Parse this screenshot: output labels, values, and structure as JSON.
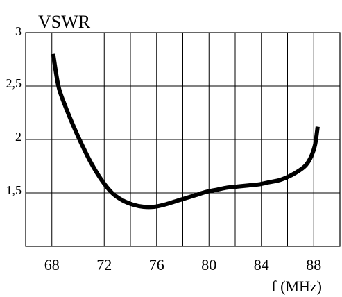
{
  "chart_data": {
    "type": "line",
    "title": "VSWR",
    "xlabel": "f (MHz)",
    "ylabel": "",
    "xlim": [
      66,
      90
    ],
    "ylim": [
      1,
      3
    ],
    "grid": true,
    "x_ticks": [
      68,
      72,
      76,
      80,
      84,
      88
    ],
    "x_tick_labels": [
      "68",
      "72",
      "76",
      "80",
      "84",
      "88"
    ],
    "y_ticks": [
      3,
      2.5,
      2,
      1.5
    ],
    "y_tick_labels": [
      "3",
      "2,5",
      "2",
      "1,5"
    ],
    "series": [
      {
        "x": [
          68.1,
          68.5,
          69,
          69.6,
          70.3,
          71.0,
          71.8,
          72.6,
          73.4,
          74.2,
          75.0,
          75.8,
          76.6,
          77.4,
          78.2,
          79.0,
          79.8,
          80.6,
          81.4,
          82.2,
          83.0,
          83.8,
          84.6,
          85.4,
          86.2,
          86.9,
          87.4,
          87.8,
          88.1,
          88.3
        ],
        "y": [
          2.8,
          2.5,
          2.32,
          2.14,
          1.95,
          1.78,
          1.62,
          1.5,
          1.43,
          1.39,
          1.37,
          1.37,
          1.39,
          1.42,
          1.45,
          1.48,
          1.51,
          1.53,
          1.55,
          1.56,
          1.57,
          1.58,
          1.6,
          1.62,
          1.66,
          1.71,
          1.76,
          1.84,
          1.95,
          2.12
        ],
        "color": "#000000"
      }
    ]
  }
}
